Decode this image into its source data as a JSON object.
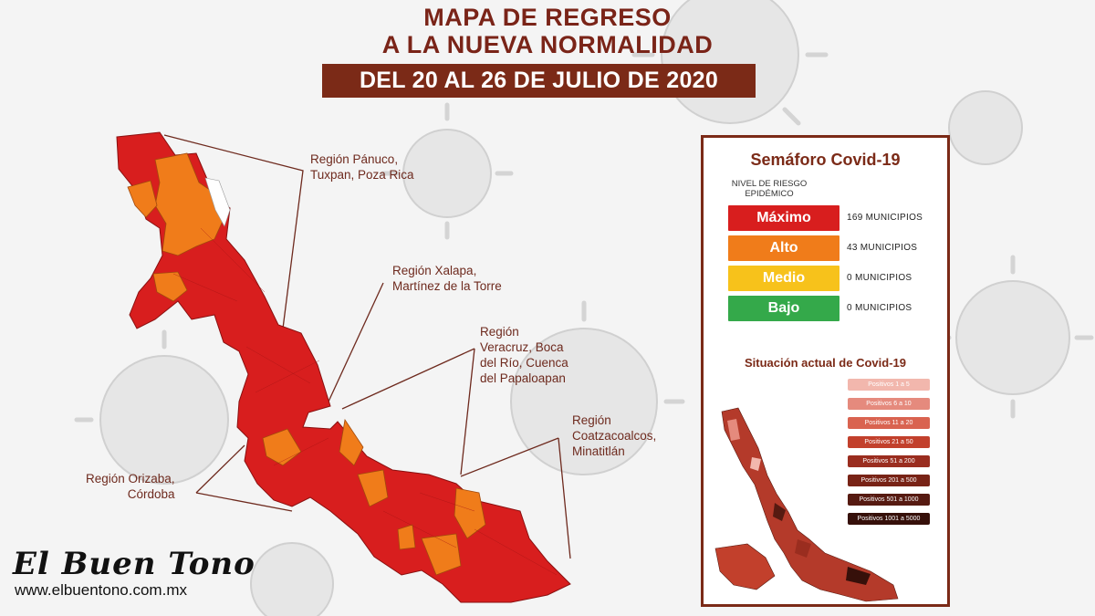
{
  "title": {
    "line1": "MAPA DE REGRESO",
    "line2": "A LA NUEVA NORMALIDAD",
    "date": "DEL 20 AL 26 DE JULIO DE 2020"
  },
  "regions": [
    {
      "line1": "Región Pánuco,",
      "line2": "Tuxpan, Poza Rica"
    },
    {
      "line1": "Región Xalapa,",
      "line2": "Martínez de la Torre"
    },
    {
      "line1": "Región",
      "line2": "Veracruz, Boca",
      "line3": "del Río, Cuenca",
      "line4": "del Papaloapan"
    },
    {
      "line1": "Región",
      "line2": "Coatzacoalcos,",
      "line3": "Minatitlán"
    },
    {
      "line1": "Región Orizaba,",
      "line2": "Córdoba"
    }
  ],
  "semaforo": {
    "title": "Semáforo Covid-19",
    "risk_header_1": "NIVEL DE RIESGO",
    "risk_header_2": "EPIDÉMICO",
    "levels": [
      {
        "label": "Máximo",
        "count": "169 MUNICIPIOS",
        "color": "#d81e1e"
      },
      {
        "label": "Alto",
        "count": "43 MUNICIPIOS",
        "color": "#f07c1a"
      },
      {
        "label": "Medio",
        "count": "0 MUNICIPIOS",
        "color": "#f7c21b"
      },
      {
        "label": "Bajo",
        "count": "0 MUNICIPIOS",
        "color": "#34a94a"
      }
    ],
    "situacion_title": "Situación actual de Covid-19",
    "legend": [
      {
        "label": "Positivos 1 a 5",
        "color": "#f2b7ad"
      },
      {
        "label": "Positivos 6 a 10",
        "color": "#e58a7d"
      },
      {
        "label": "Positivos 11 a 20",
        "color": "#d96350"
      },
      {
        "label": "Positivos 21 a 50",
        "color": "#c2402c"
      },
      {
        "label": "Positivos 51 a 200",
        "color": "#9a2d1f"
      },
      {
        "label": "Positivos 201 a 500",
        "color": "#782316"
      },
      {
        "label": "Positivos 501 a 1000",
        "color": "#561a11"
      },
      {
        "label": "Positivos 1001 a 5000",
        "color": "#36100a"
      }
    ]
  },
  "brand": {
    "logo": "El Buen Tono",
    "url": "www.elbuentono.com.mx"
  },
  "colors": {
    "maximo": "#d81e1e",
    "alto": "#f07c1a",
    "brand": "#7b2a17"
  }
}
